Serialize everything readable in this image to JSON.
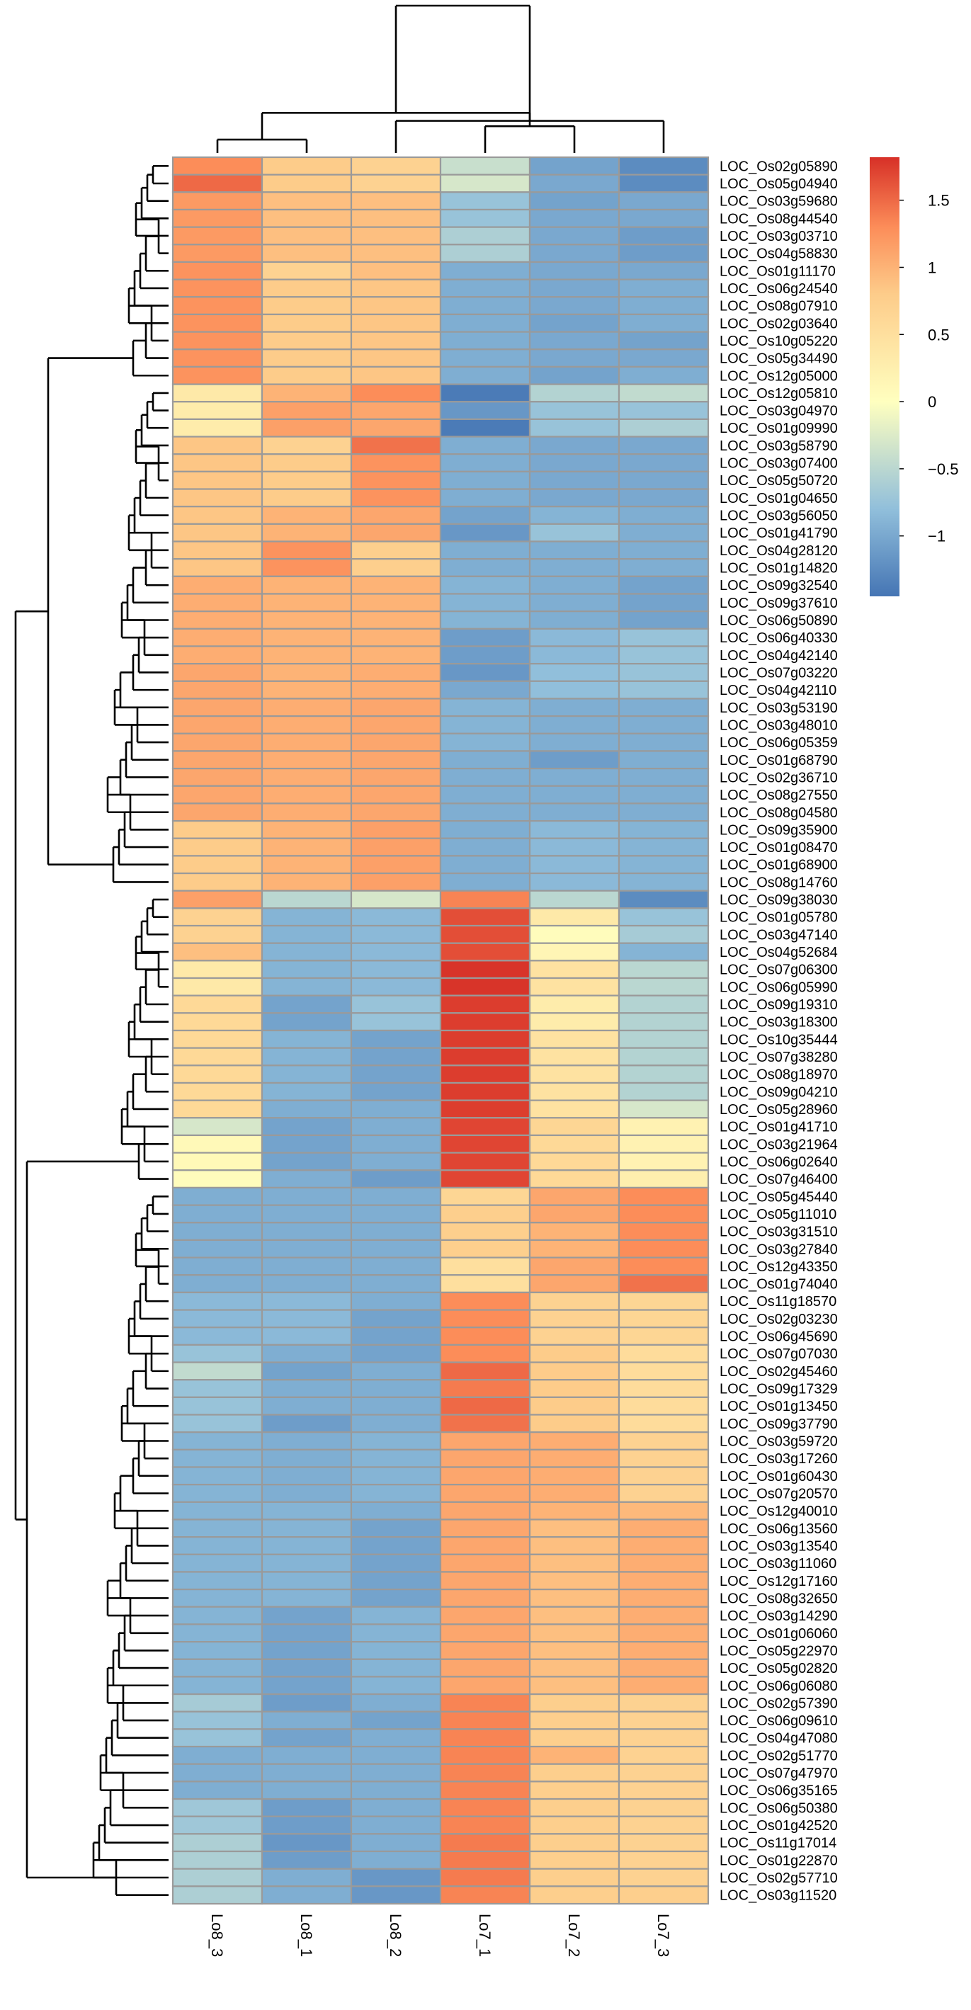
{
  "chart_data": {
    "type": "heatmap",
    "title": "",
    "xlabel": "",
    "ylabel": "",
    "columns": [
      "Lo8_3",
      "Lo8_1",
      "Lo8_2",
      "Lo7_1",
      "Lo7_2",
      "Lo7_3"
    ],
    "rows": [
      "LOC_Os02g05890",
      "LOC_Os05g04940",
      "LOC_Os03g59680",
      "LOC_Os08g44540",
      "LOC_Os03g03710",
      "LOC_Os04g58830",
      "LOC_Os01g11170",
      "LOC_Os06g24540",
      "LOC_Os08g07910",
      "LOC_Os02g03640",
      "LOC_Os10g05220",
      "LOC_Os05g34490",
      "LOC_Os12g05000",
      "LOC_Os12g05810",
      "LOC_Os03g04970",
      "LOC_Os01g09990",
      "LOC_Os03g58790",
      "LOC_Os03g07400",
      "LOC_Os05g50720",
      "LOC_Os01g04650",
      "LOC_Os03g56050",
      "LOC_Os01g41790",
      "LOC_Os04g28120",
      "LOC_Os01g14820",
      "LOC_Os09g32540",
      "LOC_Os09g37610",
      "LOC_Os06g50890",
      "LOC_Os06g40330",
      "LOC_Os04g42140",
      "LOC_Os07g03220",
      "LOC_Os04g42110",
      "LOC_Os03g53190",
      "LOC_Os03g48010",
      "LOC_Os06g05359",
      "LOC_Os01g68790",
      "LOC_Os02g36710",
      "LOC_Os08g27550",
      "LOC_Os08g04580",
      "LOC_Os09g35900",
      "LOC_Os01g08470",
      "LOC_Os01g68900",
      "LOC_Os08g14760",
      "LOC_Os09g38030",
      "LOC_Os01g05780",
      "LOC_Os03g47140",
      "LOC_Os04g52684",
      "LOC_Os07g06300",
      "LOC_Os06g05990",
      "LOC_Os09g19310",
      "LOC_Os03g18300",
      "LOC_Os10g35444",
      "LOC_Os07g38280",
      "LOC_Os08g18970",
      "LOC_Os09g04210",
      "LOC_Os05g28960",
      "LOC_Os01g41710",
      "LOC_Os03g21964",
      "LOC_Os06g02640",
      "LOC_Os07g46400",
      "LOC_Os05g45440",
      "LOC_Os05g11010",
      "LOC_Os03g31510",
      "LOC_Os03g27840",
      "LOC_Os12g43350",
      "LOC_Os01g74040",
      "LOC_Os11g18570",
      "LOC_Os02g03230",
      "LOC_Os06g45690",
      "LOC_Os07g07030",
      "LOC_Os02g45460",
      "LOC_Os09g17329",
      "LOC_Os01g13450",
      "LOC_Os09g37790",
      "LOC_Os03g59720",
      "LOC_Os03g17260",
      "LOC_Os01g60430",
      "LOC_Os07g20570",
      "LOC_Os12g40010",
      "LOC_Os06g13560",
      "LOC_Os03g13540",
      "LOC_Os03g11060",
      "LOC_Os12g17160",
      "LOC_Os08g32650",
      "LOC_Os03g14290",
      "LOC_Os01g06060",
      "LOC_Os05g22970",
      "LOC_Os05g02820",
      "LOC_Os06g06080",
      "LOC_Os02g57390",
      "LOC_Os06g09610",
      "LOC_Os04g47080",
      "LOC_Os02g51770",
      "LOC_Os07g47970",
      "LOC_Os06g35165",
      "LOC_Os06g50380",
      "LOC_Os01g42520",
      "LOC_Os11g17014",
      "LOC_Os01g22870",
      "LOC_Os02g57710",
      "LOC_Os03g11520"
    ],
    "values": [
      [
        1.3,
        0.8,
        0.7,
        -0.4,
        -1.05,
        -1.25
      ],
      [
        1.5,
        0.8,
        0.7,
        -0.3,
        -1.0,
        -1.25
      ],
      [
        1.2,
        0.9,
        0.9,
        -0.75,
        -1.05,
        -1.0
      ],
      [
        1.2,
        0.9,
        0.9,
        -0.75,
        -1.0,
        -1.0
      ],
      [
        1.2,
        0.9,
        0.9,
        -0.6,
        -1.0,
        -1.1
      ],
      [
        1.2,
        0.9,
        0.9,
        -0.6,
        -1.0,
        -1.1
      ],
      [
        1.25,
        0.7,
        0.9,
        -0.95,
        -1.0,
        -1.0
      ],
      [
        1.25,
        0.8,
        0.85,
        -0.95,
        -1.0,
        -0.95
      ],
      [
        1.25,
        0.8,
        0.85,
        -0.95,
        -1.0,
        -0.95
      ],
      [
        1.25,
        0.8,
        0.85,
        -0.95,
        -1.05,
        -0.95
      ],
      [
        1.25,
        0.8,
        0.85,
        -0.95,
        -1.0,
        -1.05
      ],
      [
        1.25,
        0.8,
        0.85,
        -0.95,
        -1.0,
        -1.0
      ],
      [
        1.25,
        0.8,
        0.85,
        -0.95,
        -1.05,
        -0.95
      ],
      [
        0.35,
        1.0,
        1.3,
        -1.4,
        -0.55,
        -0.45
      ],
      [
        0.3,
        1.15,
        1.1,
        -1.15,
        -0.75,
        -0.75
      ],
      [
        0.3,
        1.15,
        1.1,
        -1.4,
        -0.75,
        -0.6
      ],
      [
        0.85,
        0.7,
        1.45,
        -0.95,
        -1.0,
        -1.0
      ],
      [
        0.85,
        0.8,
        1.25,
        -0.95,
        -1.0,
        -1.0
      ],
      [
        0.85,
        0.8,
        1.25,
        -0.95,
        -1.0,
        -1.0
      ],
      [
        0.85,
        0.8,
        1.25,
        -0.95,
        -1.0,
        -1.0
      ],
      [
        0.85,
        1.0,
        1.1,
        -1.05,
        -0.9,
        -0.95
      ],
      [
        0.85,
        1.0,
        1.1,
        -1.15,
        -0.75,
        -0.95
      ],
      [
        0.85,
        1.25,
        0.75,
        -0.95,
        -0.95,
        -0.95
      ],
      [
        0.85,
        1.25,
        0.75,
        -0.95,
        -0.95,
        -0.95
      ],
      [
        1.05,
        1.0,
        1.0,
        -0.9,
        -0.95,
        -1.05
      ],
      [
        1.05,
        1.0,
        1.0,
        -0.9,
        -0.95,
        -1.05
      ],
      [
        1.05,
        1.0,
        1.0,
        -0.9,
        -0.95,
        -1.05
      ],
      [
        1.05,
        1.0,
        1.0,
        -1.1,
        -0.85,
        -0.75
      ],
      [
        1.05,
        1.0,
        1.0,
        -1.1,
        -0.85,
        -0.75
      ],
      [
        1.1,
        1.0,
        1.05,
        -1.15,
        -0.8,
        -0.75
      ],
      [
        1.1,
        1.0,
        1.05,
        -1.0,
        -0.8,
        -0.75
      ],
      [
        1.1,
        1.05,
        1.1,
        -0.9,
        -0.95,
        -0.95
      ],
      [
        1.1,
        1.05,
        1.1,
        -0.9,
        -0.95,
        -0.95
      ],
      [
        1.1,
        1.05,
        1.1,
        -0.9,
        -0.95,
        -0.95
      ],
      [
        1.1,
        1.05,
        1.1,
        -0.95,
        -1.1,
        -0.95
      ],
      [
        1.1,
        1.05,
        1.1,
        -0.95,
        -0.95,
        -0.95
      ],
      [
        1.1,
        1.05,
        1.1,
        -0.95,
        -0.95,
        -0.95
      ],
      [
        1.1,
        1.05,
        1.1,
        -0.95,
        -0.95,
        -0.95
      ],
      [
        0.8,
        1.0,
        1.15,
        -0.95,
        -0.85,
        -0.9
      ],
      [
        0.8,
        1.0,
        1.15,
        -0.95,
        -0.85,
        -0.9
      ],
      [
        0.8,
        1.0,
        1.15,
        -0.95,
        -0.85,
        -0.9
      ],
      [
        0.8,
        1.0,
        1.15,
        -0.95,
        -0.85,
        -0.9
      ],
      [
        1.15,
        -0.5,
        -0.3,
        1.35,
        -0.5,
        -1.25
      ],
      [
        0.7,
        -0.9,
        -0.85,
        1.65,
        0.35,
        -0.75
      ],
      [
        0.7,
        -0.9,
        -0.85,
        1.65,
        0.05,
        -0.65
      ],
      [
        0.9,
        -0.9,
        -0.85,
        1.65,
        0.15,
        -0.9
      ],
      [
        0.35,
        -0.9,
        -0.85,
        1.8,
        0.45,
        -0.5
      ],
      [
        0.35,
        -0.9,
        -0.85,
        1.8,
        0.45,
        -0.5
      ],
      [
        0.6,
        -1.05,
        -0.75,
        1.75,
        0.3,
        -0.55
      ],
      [
        0.6,
        -1.05,
        -0.75,
        1.75,
        0.3,
        -0.55
      ],
      [
        0.6,
        -0.9,
        -1.05,
        1.75,
        0.45,
        -0.55
      ],
      [
        0.6,
        -0.9,
        -1.05,
        1.75,
        0.45,
        -0.55
      ],
      [
        0.6,
        -0.9,
        -1.05,
        1.75,
        0.45,
        -0.55
      ],
      [
        0.6,
        -0.9,
        -1.05,
        1.75,
        0.45,
        -0.55
      ],
      [
        0.6,
        -0.95,
        -0.95,
        1.75,
        0.45,
        -0.3
      ],
      [
        -0.3,
        -1.05,
        -0.95,
        1.7,
        0.65,
        0.2
      ],
      [
        0.1,
        -1.05,
        -0.95,
        1.7,
        0.6,
        0.2
      ],
      [
        0.1,
        -1.05,
        -0.95,
        1.7,
        0.6,
        0.2
      ],
      [
        0.05,
        -0.95,
        -1.1,
        1.7,
        0.6,
        0.25
      ],
      [
        -0.95,
        -0.95,
        -0.95,
        0.65,
        1.1,
        1.3
      ],
      [
        -0.95,
        -0.95,
        -0.95,
        0.75,
        1.1,
        1.3
      ],
      [
        -0.95,
        -0.95,
        -0.95,
        0.75,
        1.0,
        1.3
      ],
      [
        -0.95,
        -0.95,
        -0.95,
        0.75,
        1.0,
        1.3
      ],
      [
        -0.95,
        -0.95,
        -0.95,
        0.5,
        1.1,
        1.3
      ],
      [
        -0.95,
        -0.95,
        -0.95,
        0.5,
        1.1,
        1.45
      ],
      [
        -0.85,
        -0.85,
        -0.95,
        1.3,
        0.7,
        0.65
      ],
      [
        -0.85,
        -0.85,
        -1.05,
        1.3,
        0.7,
        0.65
      ],
      [
        -0.85,
        -0.85,
        -1.05,
        1.3,
        0.7,
        0.65
      ],
      [
        -0.75,
        -0.95,
        -1.05,
        1.3,
        0.8,
        0.55
      ],
      [
        -0.45,
        -1.05,
        -0.95,
        1.5,
        0.8,
        0.55
      ],
      [
        -0.75,
        -0.95,
        -0.95,
        1.4,
        0.8,
        0.55
      ],
      [
        -0.75,
        -0.95,
        -0.95,
        1.5,
        0.8,
        0.55
      ],
      [
        -0.75,
        -1.1,
        -0.95,
        1.45,
        0.8,
        0.55
      ],
      [
        -0.9,
        -0.95,
        -0.9,
        1.1,
        1.05,
        0.7
      ],
      [
        -0.9,
        -0.95,
        -0.9,
        1.1,
        1.05,
        0.7
      ],
      [
        -0.9,
        -0.95,
        -0.9,
        1.1,
        1.05,
        0.7
      ],
      [
        -0.9,
        -0.95,
        -0.9,
        1.1,
        1.05,
        0.7
      ],
      [
        -0.9,
        -0.9,
        -0.95,
        1.1,
        1.0,
        0.95
      ],
      [
        -0.9,
        -0.9,
        -1.05,
        1.1,
        0.9,
        1.05
      ],
      [
        -0.9,
        -0.9,
        -1.05,
        1.1,
        0.9,
        1.05
      ],
      [
        -0.9,
        -0.9,
        -1.05,
        1.1,
        0.9,
        1.05
      ],
      [
        -0.9,
        -0.9,
        -1.05,
        1.1,
        0.9,
        1.05
      ],
      [
        -0.9,
        -0.9,
        -1.05,
        1.1,
        0.9,
        1.05
      ],
      [
        -0.9,
        -1.05,
        -0.9,
        1.1,
        0.9,
        1.05
      ],
      [
        -0.9,
        -1.05,
        -0.9,
        1.1,
        0.9,
        1.05
      ],
      [
        -0.9,
        -1.05,
        -0.9,
        1.1,
        0.9,
        1.05
      ],
      [
        -0.9,
        -1.05,
        -0.9,
        1.1,
        0.9,
        1.05
      ],
      [
        -0.9,
        -1.05,
        -0.9,
        1.1,
        0.9,
        1.05
      ],
      [
        -0.65,
        -1.1,
        -0.95,
        1.35,
        0.75,
        0.7
      ],
      [
        -0.75,
        -0.95,
        -1.05,
        1.35,
        0.75,
        0.7
      ],
      [
        -0.75,
        -1.05,
        -0.95,
        1.35,
        0.75,
        0.7
      ],
      [
        -0.95,
        -0.95,
        -0.95,
        1.35,
        1.0,
        0.7
      ],
      [
        -0.95,
        -0.95,
        -0.95,
        1.35,
        0.75,
        0.7
      ],
      [
        -0.95,
        -0.95,
        -0.95,
        1.35,
        0.75,
        0.7
      ],
      [
        -0.7,
        -1.1,
        -0.95,
        1.35,
        0.75,
        0.7
      ],
      [
        -0.7,
        -1.1,
        -0.95,
        1.35,
        0.75,
        0.7
      ],
      [
        -0.6,
        -1.15,
        -0.95,
        1.4,
        0.75,
        0.7
      ],
      [
        -0.6,
        -1.1,
        -0.95,
        1.4,
        0.75,
        0.7
      ],
      [
        -0.6,
        -0.95,
        -1.15,
        1.4,
        0.75,
        0.7
      ],
      [
        -0.6,
        -0.95,
        -1.15,
        1.35,
        0.75,
        0.75
      ]
    ],
    "color_scale": {
      "min": -1.45,
      "max": 1.82,
      "stops": [
        {
          "value": -1.45,
          "color": "#4575b4"
        },
        {
          "value": -0.8,
          "color": "#91bfdb"
        },
        {
          "value": 0.0,
          "color": "#ffffbf"
        },
        {
          "value": 0.8,
          "color": "#fdcc8a"
        },
        {
          "value": 1.3,
          "color": "#fc8d59"
        },
        {
          "value": 1.82,
          "color": "#d73027"
        }
      ]
    },
    "legend": {
      "position": "top-right",
      "ticks": [
        1.5,
        1,
        0.5,
        0,
        -0.5,
        -1
      ],
      "tick_labels": [
        "1.5",
        "1",
        "0.5",
        "0",
        "−0.5",
        "−1"
      ]
    },
    "column_dendrogram": [
      [
        0,
        1,
        5
      ],
      [
        5,
        2,
        12
      ],
      [
        3,
        4,
        10
      ],
      [
        6,
        8,
        15
      ],
      [
        7,
        9,
        55
      ]
    ],
    "row_dendrogram_groups": [
      13,
      29,
      17,
      41
    ],
    "row_dendrogram_heights": [
      70,
      110,
      90,
      115,
      160
    ]
  }
}
